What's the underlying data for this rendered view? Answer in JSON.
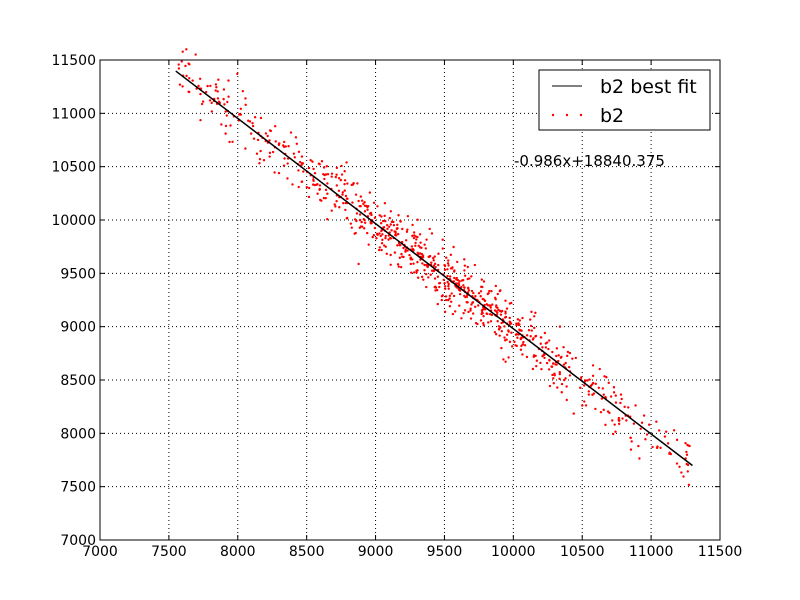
{
  "chart_data": {
    "type": "scatter",
    "title": "",
    "xlabel": "",
    "ylabel": "",
    "xlim": [
      7000,
      11500
    ],
    "ylim": [
      7000,
      11500
    ],
    "xticks": [
      7000,
      7500,
      8000,
      8500,
      9000,
      9500,
      10000,
      10500,
      11000,
      11500
    ],
    "yticks": [
      7000,
      7500,
      8000,
      8500,
      9000,
      9500,
      10000,
      10500,
      11000,
      11500
    ],
    "grid": true,
    "grid_style": "dotted",
    "legend_position": "top-right",
    "annotation": "-0.986x+18840.375",
    "fit_line": {
      "name": "b2 best fit",
      "color": "#000000",
      "slope": -0.986,
      "intercept": 18840.375,
      "x_range": [
        7550,
        11300
      ]
    },
    "scatter": {
      "name": "b2",
      "color": "#ff0000",
      "point_count": 900,
      "x_range": [
        7550,
        11300
      ],
      "x_dense_center": 9500,
      "residual_sd": 130
    }
  }
}
